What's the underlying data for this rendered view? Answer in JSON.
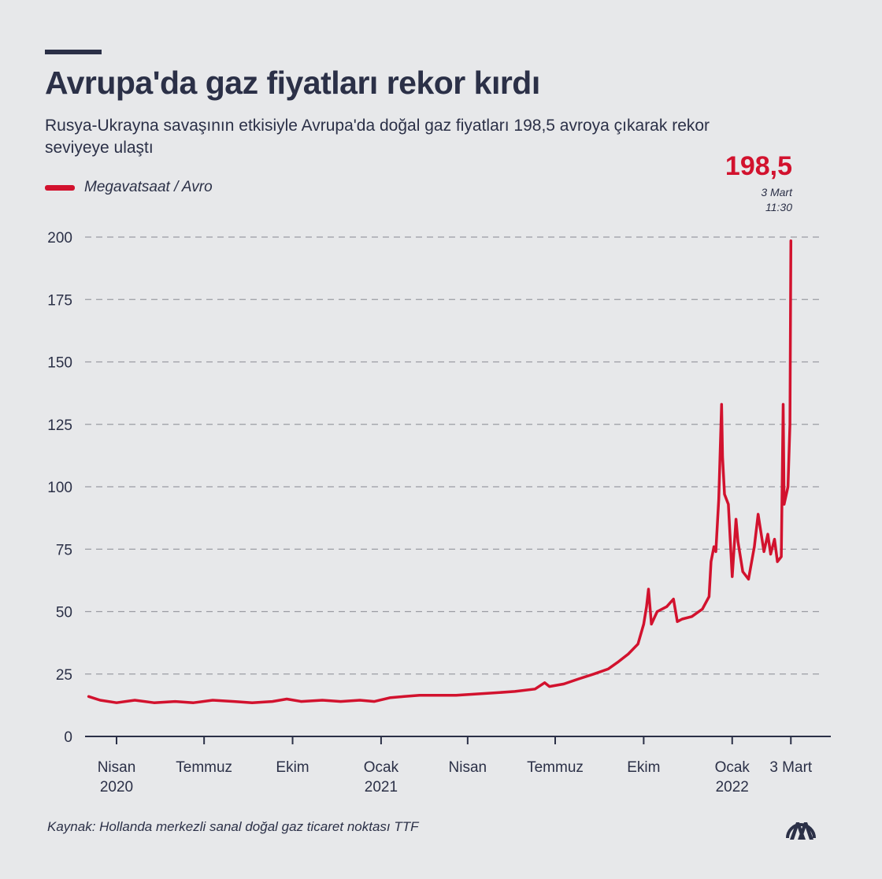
{
  "title": "Avrupa'da gaz fiyatları rekor kırdı",
  "subtitle": "Rusya-Ukrayna savaşının etkisiyle Avrupa'da doğal gaz fiyatları 198,5 avroya çıkarak rekor seviyeye ulaştı",
  "source": "Kaynak: Hollanda merkezli sanal doğal gaz ticaret noktası TTF",
  "logo": "AA",
  "chart_data": {
    "type": "line",
    "legend": "Megavatsaat / Avro",
    "color": "#d2122e",
    "annotation": {
      "value": "198,5",
      "date": "3 Mart",
      "time": "11:30"
    },
    "ylim": [
      0,
      200
    ],
    "yticks": [
      0,
      25,
      50,
      75,
      100,
      125,
      150,
      175,
      200
    ],
    "grid": true,
    "xticks": [
      {
        "date": "2020-04-01",
        "line1": "Nisan",
        "line2": "2020"
      },
      {
        "date": "2020-07-01",
        "line1": "Temmuz",
        "line2": ""
      },
      {
        "date": "2020-10-01",
        "line1": "Ekim",
        "line2": ""
      },
      {
        "date": "2021-01-01",
        "line1": "Ocak",
        "line2": "2021"
      },
      {
        "date": "2021-04-01",
        "line1": "Nisan",
        "line2": ""
      },
      {
        "date": "2021-07-01",
        "line1": "Temmuz",
        "line2": ""
      },
      {
        "date": "2021-10-01",
        "line1": "Ekim",
        "line2": ""
      },
      {
        "date": "2022-01-01",
        "line1": "Ocak",
        "line2": "2022"
      },
      {
        "date": "2022-03-03",
        "line1": "3 Mart",
        "line2": ""
      }
    ],
    "points": [
      [
        "2020-03-03",
        16
      ],
      [
        "2020-03-15",
        14.5
      ],
      [
        "2020-04-01",
        13.5
      ],
      [
        "2020-04-20",
        14.5
      ],
      [
        "2020-05-10",
        13.5
      ],
      [
        "2020-06-01",
        14
      ],
      [
        "2020-06-20",
        13.5
      ],
      [
        "2020-07-10",
        14.5
      ],
      [
        "2020-08-01",
        14
      ],
      [
        "2020-08-20",
        13.5
      ],
      [
        "2020-09-10",
        14
      ],
      [
        "2020-09-25",
        15
      ],
      [
        "2020-10-10",
        14
      ],
      [
        "2020-11-01",
        14.5
      ],
      [
        "2020-11-20",
        14
      ],
      [
        "2020-12-10",
        14.5
      ],
      [
        "2020-12-25",
        14
      ],
      [
        "2021-01-10",
        15.5
      ],
      [
        "2021-01-25",
        16
      ],
      [
        "2021-02-10",
        16.5
      ],
      [
        "2021-03-01",
        16.5
      ],
      [
        "2021-03-20",
        16.5
      ],
      [
        "2021-04-10",
        17
      ],
      [
        "2021-05-01",
        17.5
      ],
      [
        "2021-05-20",
        18
      ],
      [
        "2021-06-10",
        19
      ],
      [
        "2021-06-20",
        21.5
      ],
      [
        "2021-06-25",
        20
      ],
      [
        "2021-07-10",
        21
      ],
      [
        "2021-07-25",
        23
      ],
      [
        "2021-08-10",
        25
      ],
      [
        "2021-08-25",
        27
      ],
      [
        "2021-09-05",
        30
      ],
      [
        "2021-09-15",
        33
      ],
      [
        "2021-09-25",
        37
      ],
      [
        "2021-10-01",
        45
      ],
      [
        "2021-10-04",
        52
      ],
      [
        "2021-10-06",
        59
      ],
      [
        "2021-10-09",
        45
      ],
      [
        "2021-10-15",
        50
      ],
      [
        "2021-10-25",
        52
      ],
      [
        "2021-11-01",
        55
      ],
      [
        "2021-11-05",
        46
      ],
      [
        "2021-11-10",
        47
      ],
      [
        "2021-11-20",
        48
      ],
      [
        "2021-12-01",
        51
      ],
      [
        "2021-12-08",
        56
      ],
      [
        "2021-12-10",
        70
      ],
      [
        "2021-12-13",
        76
      ],
      [
        "2021-12-15",
        74
      ],
      [
        "2021-12-18",
        95
      ],
      [
        "2021-12-21",
        133
      ],
      [
        "2021-12-22",
        112
      ],
      [
        "2021-12-24",
        97
      ],
      [
        "2021-12-28",
        93
      ],
      [
        "2022-01-01",
        64
      ],
      [
        "2022-01-05",
        87
      ],
      [
        "2022-01-07",
        78
      ],
      [
        "2022-01-12",
        66
      ],
      [
        "2022-01-18",
        63
      ],
      [
        "2022-01-24",
        76
      ],
      [
        "2022-01-28",
        89
      ],
      [
        "2022-02-03",
        74
      ],
      [
        "2022-02-07",
        81
      ],
      [
        "2022-02-10",
        73
      ],
      [
        "2022-02-14",
        79
      ],
      [
        "2022-02-17",
        70
      ],
      [
        "2022-02-21",
        72
      ],
      [
        "2022-02-23",
        133
      ],
      [
        "2022-02-24",
        93
      ],
      [
        "2022-02-28",
        100
      ],
      [
        "2022-03-02",
        125
      ],
      [
        "2022-03-03",
        198.5
      ]
    ]
  }
}
